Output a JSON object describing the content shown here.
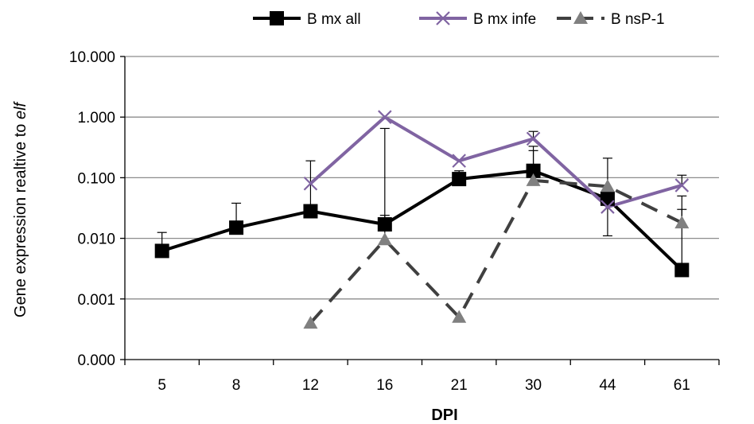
{
  "chart_data": {
    "type": "line",
    "categories": [
      "5",
      "8",
      "12",
      "16",
      "21",
      "30",
      "44",
      "61"
    ],
    "xlabel": "DPI",
    "ylabel_prefix": "Gene expression realtive to ",
    "ylabel_italic": "elf",
    "yscale": "log",
    "ylim": [
      0.0001,
      10
    ],
    "yticks": [
      0.0001,
      0.001,
      0.01,
      0.1,
      1,
      10
    ],
    "ytick_labels": [
      "0.000",
      "0.001",
      "0.010",
      "0.100",
      "1.000",
      "10.000"
    ],
    "grid": true,
    "legend_position": "top",
    "series": [
      {
        "name": "B mx all",
        "color": "#000000",
        "marker": "square",
        "dash": "solid",
        "values": [
          0.0062,
          0.015,
          0.028,
          0.017,
          0.095,
          0.13,
          0.045,
          0.003
        ],
        "err_up": [
          0.0125,
          0.038,
          0.19,
          0.65,
          0.13,
          0.33,
          0.21,
          0.05
        ],
        "err_down": [
          null,
          null,
          null,
          null,
          null,
          null,
          0.011,
          null
        ]
      },
      {
        "name": "B mx infe",
        "color": "#8064a2",
        "marker": "x",
        "dash": "solid",
        "values": [
          null,
          null,
          0.08,
          1.0,
          0.19,
          0.44,
          0.033,
          0.075
        ],
        "err_up": [
          null,
          null,
          null,
          null,
          null,
          0.58,
          null,
          0.11
        ],
        "err_down": [
          null,
          null,
          null,
          null,
          null,
          null,
          null,
          null
        ]
      },
      {
        "name": "B nsP-1",
        "color": "#404040",
        "marker_color": "#808080",
        "marker": "triangle",
        "dash": "dashed",
        "values": [
          null,
          null,
          0.0004,
          0.0095,
          0.0005,
          0.09,
          0.072,
          0.018
        ],
        "err_up": [
          null,
          null,
          null,
          0.024,
          null,
          0.28,
          null,
          0.03
        ],
        "err_down": [
          null,
          null,
          null,
          null,
          null,
          null,
          null,
          null
        ]
      }
    ]
  }
}
